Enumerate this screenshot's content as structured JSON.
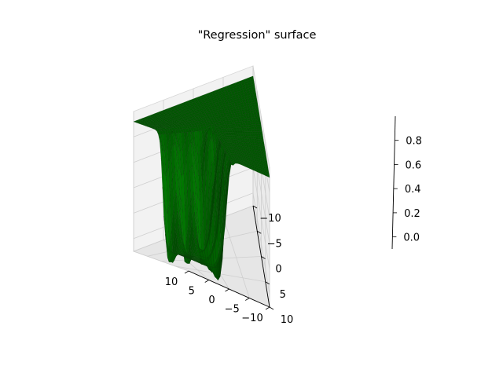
{
  "chart_data": {
    "type": "surface3d",
    "title": "\"Regression\" surface",
    "xlabel": "",
    "ylabel": "",
    "zlabel": "",
    "grid": true,
    "legend": "none",
    "x_ticks": [
      10,
      5,
      0,
      -5,
      -10
    ],
    "y_ticks": [
      10,
      5,
      0,
      -5,
      -10
    ],
    "z_ticks": [
      0.0,
      0.2,
      0.4,
      0.6,
      0.8
    ],
    "x_tick_labels": [
      "10",
      "5",
      "0",
      "−5",
      "−10"
    ],
    "y_tick_labels": [
      "10",
      "5",
      "0",
      "−5",
      "−10"
    ],
    "z_tick_labels": [
      "0.0",
      "0.2",
      "0.4",
      "0.6",
      "0.8"
    ],
    "xlim": [
      -10,
      10
    ],
    "ylim": [
      -10,
      10
    ],
    "zlim": [
      -0.1,
      0.95
    ],
    "surface": {
      "description_values": {
        "plateau_height": 0.92,
        "floor_height": 0.0,
        "floor_region": "x > 0 and y > 0",
        "oscillation_near_edges": true
      },
      "colors": {
        "face": "#007a00",
        "face_dark": "#003d00",
        "edge": "#0a3d0a"
      }
    },
    "pane_colors": {
      "left": "#f2f2f2",
      "right": "#ebebeb",
      "floor": "#e6e6e6"
    }
  }
}
